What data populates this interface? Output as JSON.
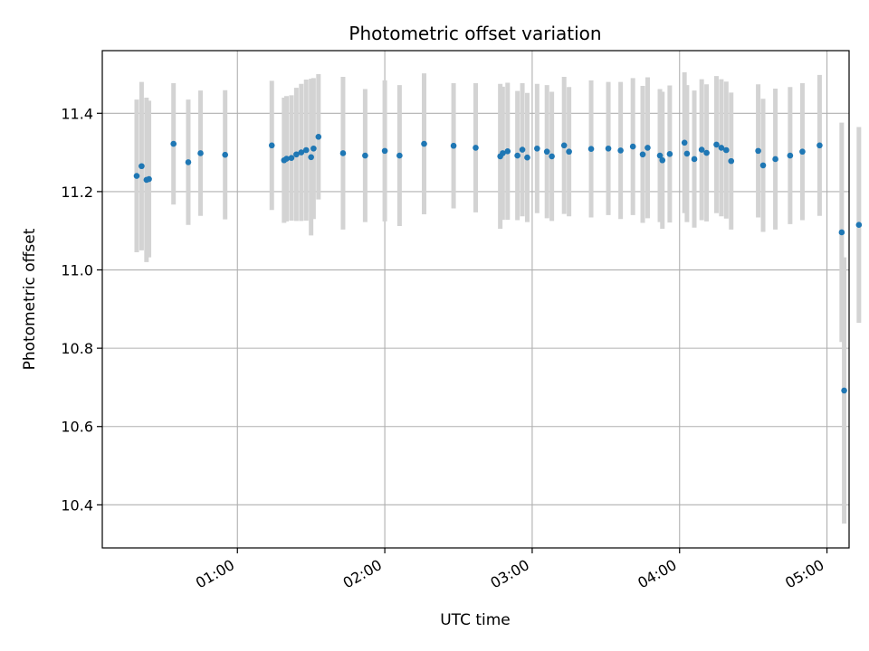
{
  "chart_data": {
    "type": "scatter",
    "title": "Photometric offset variation",
    "xlabel": "UTC time",
    "ylabel": "Photometric offset",
    "x_tick_labels": [
      "01:00",
      "02:00",
      "03:00",
      "04:00",
      "05:00"
    ],
    "x_ticks": [
      "01:00",
      "02:00",
      "03:00",
      "04:00",
      "05:00"
    ],
    "y_ticks": [
      10.4,
      10.6,
      10.8,
      11.0,
      11.2,
      11.4
    ],
    "xlim": [
      "00:05",
      "05:09"
    ],
    "ylim": [
      10.29,
      11.56
    ],
    "grid": true,
    "colors": {
      "point": "#1f77b4",
      "errorbar": "#d3d3d3",
      "grid": "#b0b0b0"
    },
    "series": [
      {
        "x": [
          "00:19",
          "00:21",
          "00:23",
          "00:24",
          "00:34",
          "00:40",
          "00:45",
          "00:55",
          "01:14",
          "01:19",
          "01:20",
          "01:22",
          "01:24",
          "01:26",
          "01:28",
          "01:30",
          "01:31",
          "01:33",
          "01:43",
          "01:52",
          "02:00",
          "02:06",
          "02:16",
          "02:28",
          "02:37",
          "02:47",
          "02:48",
          "02:50",
          "02:54",
          "02:56",
          "02:58",
          "03:02",
          "03:06",
          "03:08",
          "03:13",
          "03:15",
          "03:24",
          "03:31",
          "03:36",
          "03:41",
          "03:45",
          "03:47",
          "03:52",
          "03:53",
          "03:56",
          "04:02",
          "04:03",
          "04:06",
          "04:09",
          "04:11",
          "04:15",
          "04:17",
          "04:19",
          "04:21",
          "04:32",
          "04:34",
          "04:39",
          "04:45",
          "04:50",
          "04:57",
          "05:06",
          "05:07",
          "05:13"
        ],
        "y": [
          11.24,
          11.265,
          11.23,
          11.232,
          11.322,
          11.275,
          11.298,
          11.294,
          11.318,
          11.28,
          11.284,
          11.286,
          11.295,
          11.3,
          11.306,
          11.288,
          11.31,
          11.34,
          11.298,
          11.292,
          11.304,
          11.292,
          11.322,
          11.317,
          11.312,
          11.29,
          11.298,
          11.303,
          11.292,
          11.307,
          11.287,
          11.31,
          11.302,
          11.29,
          11.318,
          11.302,
          11.309,
          11.31,
          11.305,
          11.315,
          11.295,
          11.312,
          11.292,
          11.28,
          11.296,
          11.325,
          11.297,
          11.283,
          11.307,
          11.299,
          11.32,
          11.312,
          11.306,
          11.278,
          11.304,
          11.267,
          11.283,
          11.292,
          11.302,
          11.318,
          11.096,
          10.692,
          11.115
        ],
        "yerr": [
          0.195,
          0.215,
          0.21,
          0.2,
          0.155,
          0.16,
          0.16,
          0.165,
          0.165,
          0.16,
          0.16,
          0.16,
          0.17,
          0.175,
          0.18,
          0.2,
          0.18,
          0.16,
          0.195,
          0.17,
          0.18,
          0.18,
          0.18,
          0.16,
          0.165,
          0.185,
          0.17,
          0.175,
          0.165,
          0.17,
          0.165,
          0.165,
          0.17,
          0.165,
          0.175,
          0.165,
          0.175,
          0.17,
          0.175,
          0.175,
          0.175,
          0.18,
          0.17,
          0.175,
          0.175,
          0.18,
          0.175,
          0.175,
          0.18,
          0.175,
          0.175,
          0.175,
          0.175,
          0.175,
          0.17,
          0.17,
          0.18,
          0.175,
          0.175,
          0.18,
          0.28,
          0.34,
          0.25
        ]
      }
    ]
  }
}
